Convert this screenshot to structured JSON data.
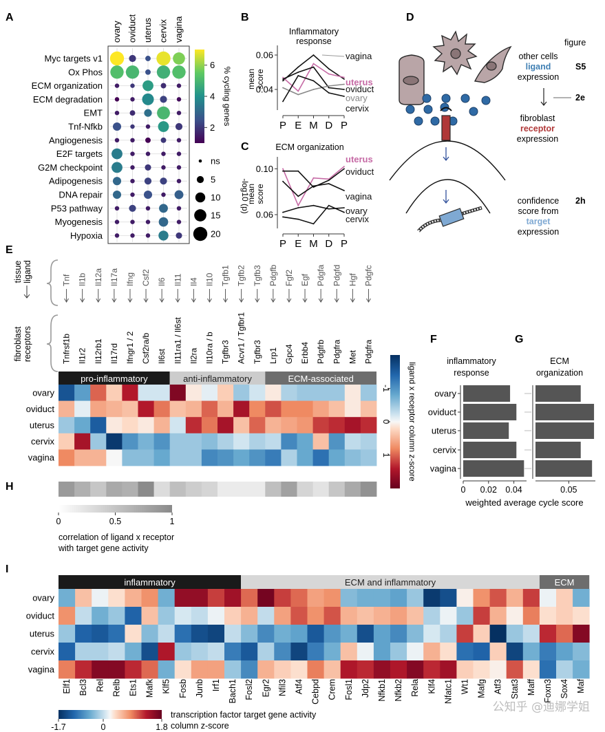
{
  "panels": {
    "A": "A",
    "B": "B",
    "C": "C",
    "D": "D",
    "E": "E",
    "F": "F",
    "G": "G",
    "H": "H",
    "I": "I"
  },
  "chart_data": [
    {
      "id": "A",
      "type": "dot-heatmap",
      "tissues": [
        "ovary",
        "oviduct",
        "uterus",
        "cervix",
        "vagina"
      ],
      "pathways": [
        "Myc targets v1",
        "Ox Phos",
        "ECM organization",
        "ECM degradation",
        "EMT",
        "Tnf-Nfkb",
        "Angiogenesis",
        "E2F targets",
        "G2M checkpoint",
        "Adipogenesis",
        "DNA repair",
        "P53 pathway",
        "Myogenesis",
        "Hypoxia"
      ],
      "pct_cycling": [
        [
          7.0,
          2.0,
          2.5,
          6.8,
          5.8
        ],
        [
          5.2,
          5.0,
          2.5,
          4.8,
          5.2
        ],
        [
          1.5,
          2.0,
          4.3,
          1.8,
          1.5
        ],
        [
          1.0,
          1.5,
          3.8,
          2.2,
          1.2
        ],
        [
          1.5,
          1.8,
          3.2,
          5.0,
          1.5
        ],
        [
          2.5,
          2.0,
          1.5,
          4.2,
          2.0
        ],
        [
          1.5,
          1.5,
          1.0,
          2.0,
          1.5
        ],
        [
          3.5,
          1.5,
          1.5,
          1.5,
          1.5
        ],
        [
          3.5,
          1.5,
          2.0,
          1.5,
          1.5
        ],
        [
          3.0,
          1.5,
          2.2,
          2.2,
          1.5
        ],
        [
          3.0,
          1.5,
          2.5,
          1.5,
          2.8
        ],
        [
          1.5,
          2.2,
          1.5,
          3.0,
          1.5
        ],
        [
          1.5,
          1.5,
          1.5,
          3.0,
          1.5
        ],
        [
          1.5,
          1.5,
          1.5,
          3.5,
          2.0
        ]
      ],
      "neglog10p": [
        [
          20,
          5,
          3,
          20,
          15
        ],
        [
          18,
          18,
          3,
          18,
          18
        ],
        [
          2,
          2,
          12,
          3,
          2
        ],
        [
          2,
          2,
          14,
          5,
          2
        ],
        [
          2,
          3,
          6,
          17,
          2
        ],
        [
          7,
          2,
          2,
          12,
          5
        ],
        [
          2,
          2,
          3,
          3,
          2
        ],
        [
          12,
          2,
          2,
          2,
          2
        ],
        [
          12,
          2,
          4,
          2,
          2
        ],
        [
          7,
          2,
          5,
          5,
          2
        ],
        [
          7,
          2,
          7,
          2,
          8
        ],
        [
          2,
          5,
          2,
          8,
          2
        ],
        [
          2,
          2,
          2,
          9,
          2
        ],
        [
          2,
          2,
          2,
          10,
          4
        ]
      ],
      "colorbar": {
        "label": "% cycling genes",
        "ticks": [
          2,
          4,
          6
        ],
        "range": [
          1,
          7
        ]
      },
      "size_legend": {
        "label": "-log10 (p)",
        "items": [
          "ns",
          "5",
          "10",
          "15",
          "20"
        ],
        "values": [
          1,
          5,
          10,
          15,
          20
        ]
      }
    },
    {
      "id": "B",
      "type": "line",
      "title": "Inflammatory response",
      "title_lines": [
        "Inflammatory",
        "response"
      ],
      "ylabel_lines": [
        "mean",
        "score"
      ],
      "x": [
        "P",
        "E",
        "M",
        "D",
        "P"
      ],
      "ylim": [
        0.028,
        0.064
      ],
      "yticks": [
        "0.04",
        "0.06"
      ],
      "ytick_values": [
        0.04,
        0.06
      ],
      "series": [
        {
          "name": "vagina",
          "color": "#111111",
          "values": [
            0.045,
            0.053,
            0.06,
            0.052,
            0.046
          ]
        },
        {
          "name": "uterus",
          "color": "#c66aa5",
          "values": [
            0.047,
            0.039,
            0.055,
            0.049,
            0.047
          ]
        },
        {
          "name": "oviduct",
          "color": "#111111",
          "values": [
            0.046,
            0.05,
            0.053,
            0.041,
            0.04
          ]
        },
        {
          "name": "ovary",
          "color": "#888888",
          "values": [
            0.041,
            0.037,
            0.04,
            0.042,
            0.043
          ]
        },
        {
          "name": "cervix",
          "color": "#111111",
          "values": [
            0.033,
            0.048,
            0.045,
            0.038,
            0.036
          ]
        }
      ]
    },
    {
      "id": "C",
      "type": "line",
      "title": "ECM organization",
      "ylabel_lines": [
        "mean",
        "score"
      ],
      "x": [
        "P",
        "E",
        "M",
        "D",
        "P"
      ],
      "ylim": [
        0.048,
        0.108
      ],
      "yticks": [
        "0.10",
        "0.06"
      ],
      "ytick_values": [
        0.1,
        0.06
      ],
      "series": [
        {
          "name": "uterus",
          "color": "#c66aa5",
          "values": [
            0.1,
            0.068,
            0.092,
            0.091,
            0.102
          ]
        },
        {
          "name": "oviduct",
          "color": "#111111",
          "values": [
            0.098,
            0.098,
            0.084,
            0.09,
            0.1
          ]
        },
        {
          "name": "vagina",
          "color": "#111111",
          "values": [
            0.089,
            0.076,
            0.085,
            0.087,
            0.081
          ]
        },
        {
          "name": "ovary",
          "color": "#111111",
          "values": [
            0.062,
            0.066,
            0.068,
            0.065,
            0.066
          ]
        },
        {
          "name": "cervix",
          "color": "#111111",
          "values": [
            0.058,
            0.056,
            0.052,
            0.068,
            0.062
          ]
        }
      ]
    },
    {
      "id": "E",
      "type": "heatmap",
      "side_labels": {
        "tissue": "tissue",
        "ligand": "ligand",
        "fibroblast": "fibroblast",
        "receptors": "receptors"
      },
      "ligands": [
        "Tnf",
        "Il1b",
        "Il12a",
        "Il17a",
        "Ifng",
        "Csf2",
        "Il6",
        "Il11",
        "Il4",
        "Il10",
        "Tgfb1",
        "Tgfb2",
        "Tgfb3",
        "Pdgfb",
        "Fgf2",
        "Egf",
        "Pdgfa",
        "Pdgfd",
        "Hgf",
        "Pdgfc"
      ],
      "receptors": [
        "Tnfrsf1b",
        "Il1r2",
        "Il12rb1",
        "Il17rd",
        "Ifngr1 / 2",
        "Csf2ra/b",
        "Il6st",
        "Il11ra1 / Il6st",
        "Il2ra",
        "Il10ra / b",
        "Tgfbr3",
        "Acvr1 / Tgfbr1",
        "Tgfbr3",
        "Lrp1",
        "Gpc4",
        "Erbb4",
        "Pdgfrb",
        "Pdgfra",
        "Met",
        "Pdgfra"
      ],
      "groups": [
        {
          "label": "pro-inflammatory",
          "start": 0,
          "end": 7,
          "color": "#1a1a1a",
          "text": "#ffffff"
        },
        {
          "label": "anti-inflammatory",
          "start": 7,
          "end": 13,
          "color": "#cccccc",
          "text": "#222222"
        },
        {
          "label": "ECM-associated",
          "start": 13,
          "end": 20,
          "color": "#6d6d6d",
          "text": "#ffffff"
        }
      ],
      "rows": [
        "ovary",
        "oviduct",
        "uterus",
        "cervix",
        "vagina"
      ],
      "z": [
        [
          -1.6,
          -0.9,
          1.0,
          0.3,
          1.4,
          -0.2,
          -0.2,
          1.8,
          0.1,
          -0.1,
          0.3,
          -0.5,
          -0.2,
          0.1,
          -0.4,
          -0.5,
          -0.5,
          -0.5,
          0.1,
          -0.5
        ],
        [
          0.5,
          -0.1,
          0.6,
          0.5,
          0.4,
          1.4,
          0.9,
          0.4,
          0.5,
          1.0,
          0.5,
          1.5,
          0.8,
          1.1,
          0.8,
          0.8,
          0.6,
          0.4,
          0.1,
          0.4
        ],
        [
          -0.5,
          -0.8,
          -1.5,
          0.1,
          0.2,
          0.1,
          0.5,
          -0.2,
          1.3,
          0.9,
          1.5,
          0.4,
          1.0,
          0.5,
          0.6,
          0.7,
          1.2,
          1.3,
          1.5,
          1.3
        ],
        [
          0.3,
          1.5,
          -0.5,
          -1.9,
          -1.0,
          -0.7,
          -1.0,
          -0.5,
          -0.5,
          -0.6,
          -0.4,
          -0.2,
          -0.4,
          -0.3,
          -1.1,
          -0.8,
          0.4,
          -1.0,
          -0.3,
          -0.4
        ],
        [
          0.8,
          0.5,
          0.5,
          0.0,
          -0.6,
          -0.6,
          -0.8,
          -0.5,
          -0.5,
          -1.1,
          -1.0,
          -0.8,
          -1.0,
          -1.2,
          -0.4,
          -0.8,
          -1.3,
          -0.8,
          -0.6,
          -0.5
        ]
      ],
      "colorbar": {
        "label": "ligand x receptor column z-score",
        "ticks": [
          "-1",
          "0",
          "1"
        ],
        "range": [
          -2,
          2
        ]
      }
    },
    {
      "id": "H",
      "type": "heatmap-strip",
      "values": [
        0.6,
        0.45,
        0.3,
        0.5,
        0.45,
        0.7,
        0.15,
        0.35,
        0.25,
        0.2,
        0.05,
        0.05,
        0.05,
        0.35,
        0.55,
        0.2,
        0.1,
        0.3,
        0.5,
        0.65
      ],
      "scale_ticks": [
        "0",
        "0.5",
        "1"
      ],
      "scale_values": [
        0,
        0.5,
        1
      ],
      "label_lines": [
        "correlation of ligand x receptor",
        "with target gene activity"
      ]
    },
    {
      "id": "F",
      "type": "bar",
      "orientation": "horizontal",
      "title_lines": [
        "inflammatory",
        "response"
      ],
      "categories": [
        "ovary",
        "oviduct",
        "uterus",
        "cervix",
        "vagina"
      ],
      "values": [
        0.037,
        0.042,
        0.036,
        0.042,
        0.048
      ],
      "xlim": [
        0,
        0.05
      ],
      "xticks": [
        "0",
        "0.02",
        "0.04"
      ],
      "xtick_values": [
        0,
        0.02,
        0.04
      ]
    },
    {
      "id": "G",
      "type": "bar",
      "orientation": "horizontal",
      "title_lines": [
        "ECM",
        "organization"
      ],
      "categories": [
        "ovary",
        "oviduct",
        "uterus",
        "cervix",
        "vagina"
      ],
      "values": [
        0.068,
        0.088,
        0.088,
        0.068,
        0.085
      ],
      "xlim": [
        0,
        0.09
      ],
      "xticks": [
        "0.05"
      ],
      "xtick_values": [
        0.05
      ],
      "shared_xlabel": "weighted average cycle score"
    },
    {
      "id": "I",
      "type": "heatmap",
      "factors": [
        "Elf1",
        "Bcl3",
        "Rel",
        "Relb",
        "Ets1",
        "Mafk",
        "Klf5",
        "Fosb",
        "Junb",
        "Irf1",
        "Bach1",
        "Fosl2",
        "Egr2",
        "Nfil3",
        "Atf4",
        "Cebpd",
        "Crem",
        "Fosl1",
        "Jdp2",
        "Nfkb1",
        "Nfkb2",
        "Rela",
        "Klf4",
        "Nfatc1",
        "Wt1",
        "Mafg",
        "Atf3",
        "Stat3",
        "Maff",
        "Foxn3",
        "Sox4",
        "Maf"
      ],
      "groups": [
        {
          "label": "inflammatory",
          "start": 0,
          "end": 11,
          "color": "#1a1a1a",
          "text": "#ffffff"
        },
        {
          "label": "ECM and inflammatory",
          "start": 11,
          "end": 29,
          "color": "#d7d7d7",
          "text": "#222222"
        },
        {
          "label": "ECM",
          "start": 29,
          "end": 32,
          "color": "#6d6d6d",
          "text": "#ffffff"
        }
      ],
      "rows": [
        "ovary",
        "oviduct",
        "uterus",
        "cervix",
        "vagina"
      ],
      "z": [
        [
          -0.6,
          0.4,
          0.0,
          0.2,
          0.5,
          0.7,
          -0.6,
          1.5,
          1.5,
          1.1,
          1.4,
          0.9,
          1.7,
          1.1,
          0.9,
          0.6,
          0.7,
          -0.5,
          -0.6,
          -0.6,
          -0.7,
          -0.4,
          -1.6,
          -1.4,
          0.1,
          0.7,
          1.0,
          0.5,
          1.1,
          0.0,
          0.3,
          -0.6
        ],
        [
          0.7,
          -0.2,
          -0.6,
          -0.4,
          -1.2,
          0.4,
          -0.4,
          -0.1,
          -0.2,
          0.0,
          0.3,
          0.5,
          -0.2,
          0.6,
          1.0,
          0.7,
          1.0,
          0.5,
          0.4,
          0.5,
          0.6,
          0.4,
          -0.3,
          0.0,
          -0.4,
          1.1,
          0.5,
          0.1,
          0.8,
          0.2,
          0.3,
          0.2
        ],
        [
          -0.4,
          -1.2,
          -1.3,
          -1.1,
          0.2,
          -0.5,
          -0.2,
          -1.1,
          -1.4,
          -1.5,
          -0.2,
          -0.5,
          -0.9,
          -0.6,
          -0.7,
          -1.3,
          -0.8,
          -0.6,
          -1.4,
          -0.7,
          -0.9,
          -0.5,
          -0.1,
          -0.3,
          1.1,
          0.3,
          -1.7,
          -0.4,
          -0.2,
          1.2,
          0.9,
          1.6
        ],
        [
          -1.2,
          -0.3,
          -0.3,
          -0.2,
          -0.6,
          -1.4,
          1.3,
          -0.4,
          -0.3,
          -0.2,
          -1.0,
          -1.3,
          -0.3,
          -0.9,
          -1.5,
          -1.0,
          -0.6,
          0.4,
          0.0,
          -0.7,
          -0.4,
          0.0,
          0.5,
          0.2,
          -1.1,
          -1.2,
          0.3,
          -1.5,
          -0.6,
          -1.0,
          -0.7,
          -0.5
        ],
        [
          0.8,
          1.2,
          1.6,
          1.6,
          1.2,
          0.9,
          -0.6,
          0.2,
          0.6,
          0.6,
          -0.4,
          -0.9,
          0.5,
          0.3,
          0.2,
          0.8,
          0.4,
          1.3,
          1.2,
          1.5,
          1.3,
          1.6,
          1.2,
          1.4,
          0.3,
          0.2,
          0.1,
          1.0,
          0.2,
          -1.1,
          -0.3,
          -0.6
        ]
      ],
      "colorbar": {
        "ticks": [
          "-1.7",
          "0",
          "1.8"
        ],
        "range": [
          -1.7,
          1.8
        ],
        "label_lines": [
          "transcription factor target gene activity",
          "column z-score"
        ]
      }
    }
  ],
  "diagram_D": {
    "figure_header": "figure",
    "rows": [
      {
        "lines": [
          "other cells",
          "ligand",
          "expression"
        ],
        "accent_index": 1,
        "accent_color": "#3f7fb3",
        "ref": "S5"
      },
      {
        "lines": [
          "fibroblast",
          "receptor",
          "expression"
        ],
        "accent_index": 1,
        "accent_color": "#b03838",
        "ref": "2e"
      },
      {
        "lines": [
          "confidence",
          "score from",
          "target",
          "expression"
        ],
        "accent_index": 2,
        "accent_color": "#7fa9d3",
        "ref": "2h"
      }
    ]
  },
  "watermark": "公知乎 @迪娜学姐"
}
